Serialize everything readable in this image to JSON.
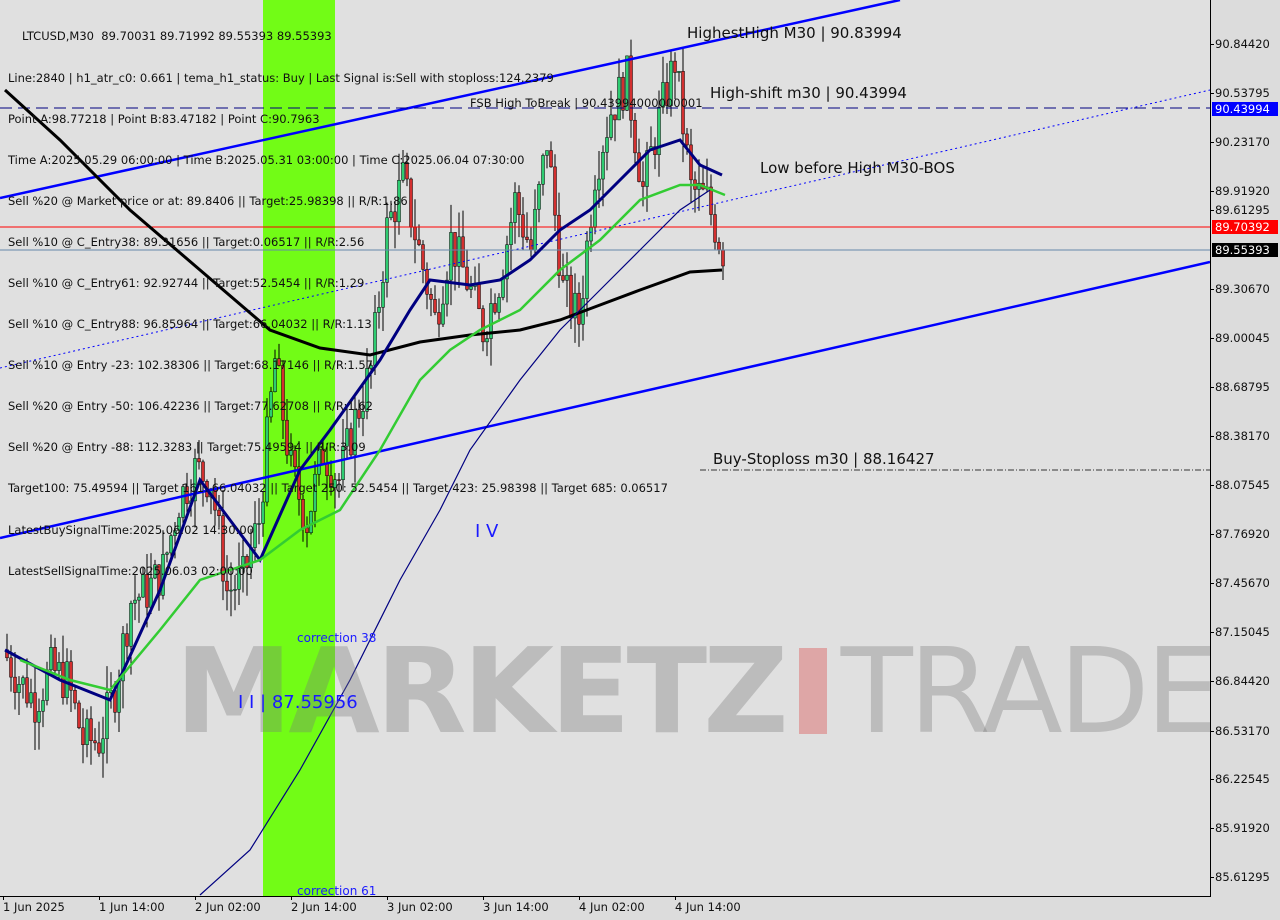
{
  "header": {
    "symbol_line": "LTCUSD,M30  89.70031 89.71992 89.55393 89.55393",
    "lines": [
      "Line:2840 | h1_atr_c0: 0.661 | tema_h1_status: Buy | Last Signal is:Sell with stoploss:124.2379",
      "Point A:98.77218 | Point B:83.47182 | Point C:90.7963",
      "Time A:2025.05.29 06:00:00 | Time B:2025.05.31 03:00:00 | Time C:2025.06.04 07:30:00",
      "Sell %20 @ Market price or at: 89.8406 || Target:25.98398 || R/R:1.86",
      "Sell %10 @ C_Entry38: 89.31656 || Target:0.06517 || R/R:2.56",
      "Sell %10 @ C_Entry61: 92.92744 || Target:52.5454 || R/R:1.29",
      "Sell %10 @ C_Entry88: 96.85964 || Target:66.04032 || R/R:1.13",
      "Sell %10 @ Entry -23: 102.38306 || Target:68.17146 || R/R:1.57",
      "Sell %20 @ Entry -50: 106.42236 || Target:77.62708 || R/R:1.62",
      "Sell %20 @ Entry -88: 112.3283 || Target:75.49594 || R/R:3.09",
      "Target100: 75.49594 || Target 161: 66.04032 || Target 250: 52.5454 || Target 423: 25.98398 || Target 685: 0.06517",
      "LatestBuySignalTime:2025.06.02 14:30:00",
      "LatestSellSignalTime:2025.06.03 02:00:00"
    ],
    "fsb_label": "FSB High ToBreak | 90.43994000000001"
  },
  "annotations": {
    "highest_high": "HighestHigh    M30 | 90.83994",
    "high_shift": "High-shift m30 | 90.43994",
    "low_before_high": "Low before High    M30-BOS",
    "buy_stoploss": "Buy-Stoploss m30 | 88.16427",
    "wave_iv": "I V",
    "wave_ii": "I I | 87.55956",
    "correction_38": "correction 38",
    "correction_61": "correction 61"
  },
  "watermark": {
    "left": "MARKETZ",
    "right": "TRADE"
  },
  "colors": {
    "bull": "#2ecc71",
    "bear": "#d32f2f",
    "channel": "#0000ff",
    "zone": "#66ff00",
    "ma_slow": "#000000",
    "ma_fast": "#000080",
    "ma_mid": "#33cc33",
    "price_red": "#ff0000",
    "price_blue": "#0000ff"
  },
  "chart_data": {
    "type": "candlestick",
    "symbol": "LTCUSD",
    "timeframe": "M30",
    "x_labels": [
      "1 Jun 2025",
      "1 Jun 14:00",
      "2 Jun 02:00",
      "2 Jun 14:00",
      "3 Jun 02:00",
      "3 Jun 14:00",
      "4 Jun 02:00",
      "4 Jun 14:00"
    ],
    "y_ticks": [
      "90.84420",
      "90.53795",
      "90.23170",
      "89.91920",
      "89.61295",
      "89.30670",
      "89.00045",
      "88.68795",
      "88.38170",
      "88.07545",
      "87.76920",
      "87.45670",
      "87.15045",
      "86.84420",
      "86.53170",
      "86.22545",
      "85.91920",
      "85.61295"
    ],
    "ylim": [
      85.55,
      91.1
    ],
    "approx_closes_every_2h": [
      87.04,
      86.85,
      86.72,
      86.91,
      86.85,
      86.47,
      86.47,
      86.79,
      87.35,
      87.41,
      87.54,
      87.98,
      88.17,
      88.11,
      87.41,
      87.48,
      87.85,
      88.86,
      88.17,
      87.85,
      88.29,
      88.11,
      88.48,
      88.8,
      89.68,
      89.99,
      89.55,
      89.11,
      89.61,
      89.36,
      89.05,
      89.36,
      89.86,
      89.55,
      90.24,
      89.3,
      89.11,
      90.05,
      90.43,
      90.62,
      89.93,
      90.37,
      90.74,
      89.93,
      89.86,
      89.55
    ],
    "price_levels": {
      "high_shift": "90.43994",
      "bid_line": "89.70392",
      "last_price": "89.55393",
      "buy_stoploss": 88.16427
    }
  }
}
